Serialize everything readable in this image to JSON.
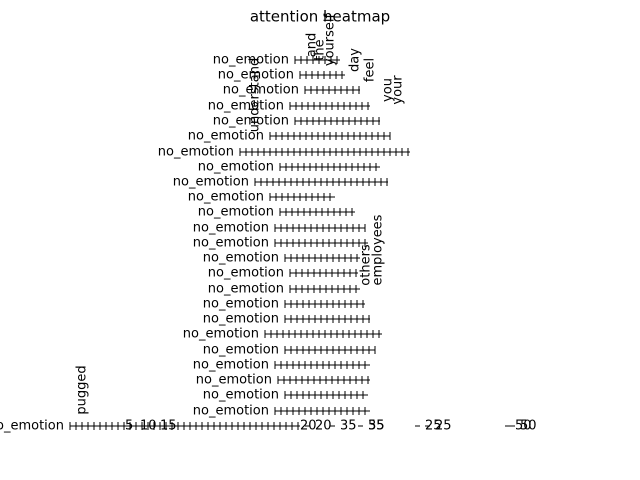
{
  "chart_data": {
    "type": "heatmap",
    "title": "attention heatmap",
    "y_categories": [
      "no_emotion",
      "no_emotion",
      "no_emotion",
      "no_emotion",
      "no_emotion",
      "no_emotion",
      "no_emotion",
      "no_emotion",
      "no_emotion",
      "no_emotion",
      "no_emotion",
      "no_emotion",
      "no_emotion",
      "no_emotion",
      "no_emotion",
      "no_emotion",
      "no_emotion",
      "no_emotion",
      "no_emotion",
      "no_emotion",
      "no_emotion",
      "no_emotion",
      "no_emotion",
      "no_emotion",
      "no_emotion"
    ],
    "x_tick_labels": [
      "5",
      "10",
      "15",
      "20",
      "25",
      "35",
      "50",
      "55",
      "20",
      "35",
      "25",
      "50"
    ],
    "words": [
      "understand",
      "employees",
      "others",
      "yourself",
      "your",
      "you",
      "feel",
      "day",
      "the",
      "and",
      "pugged"
    ]
  }
}
